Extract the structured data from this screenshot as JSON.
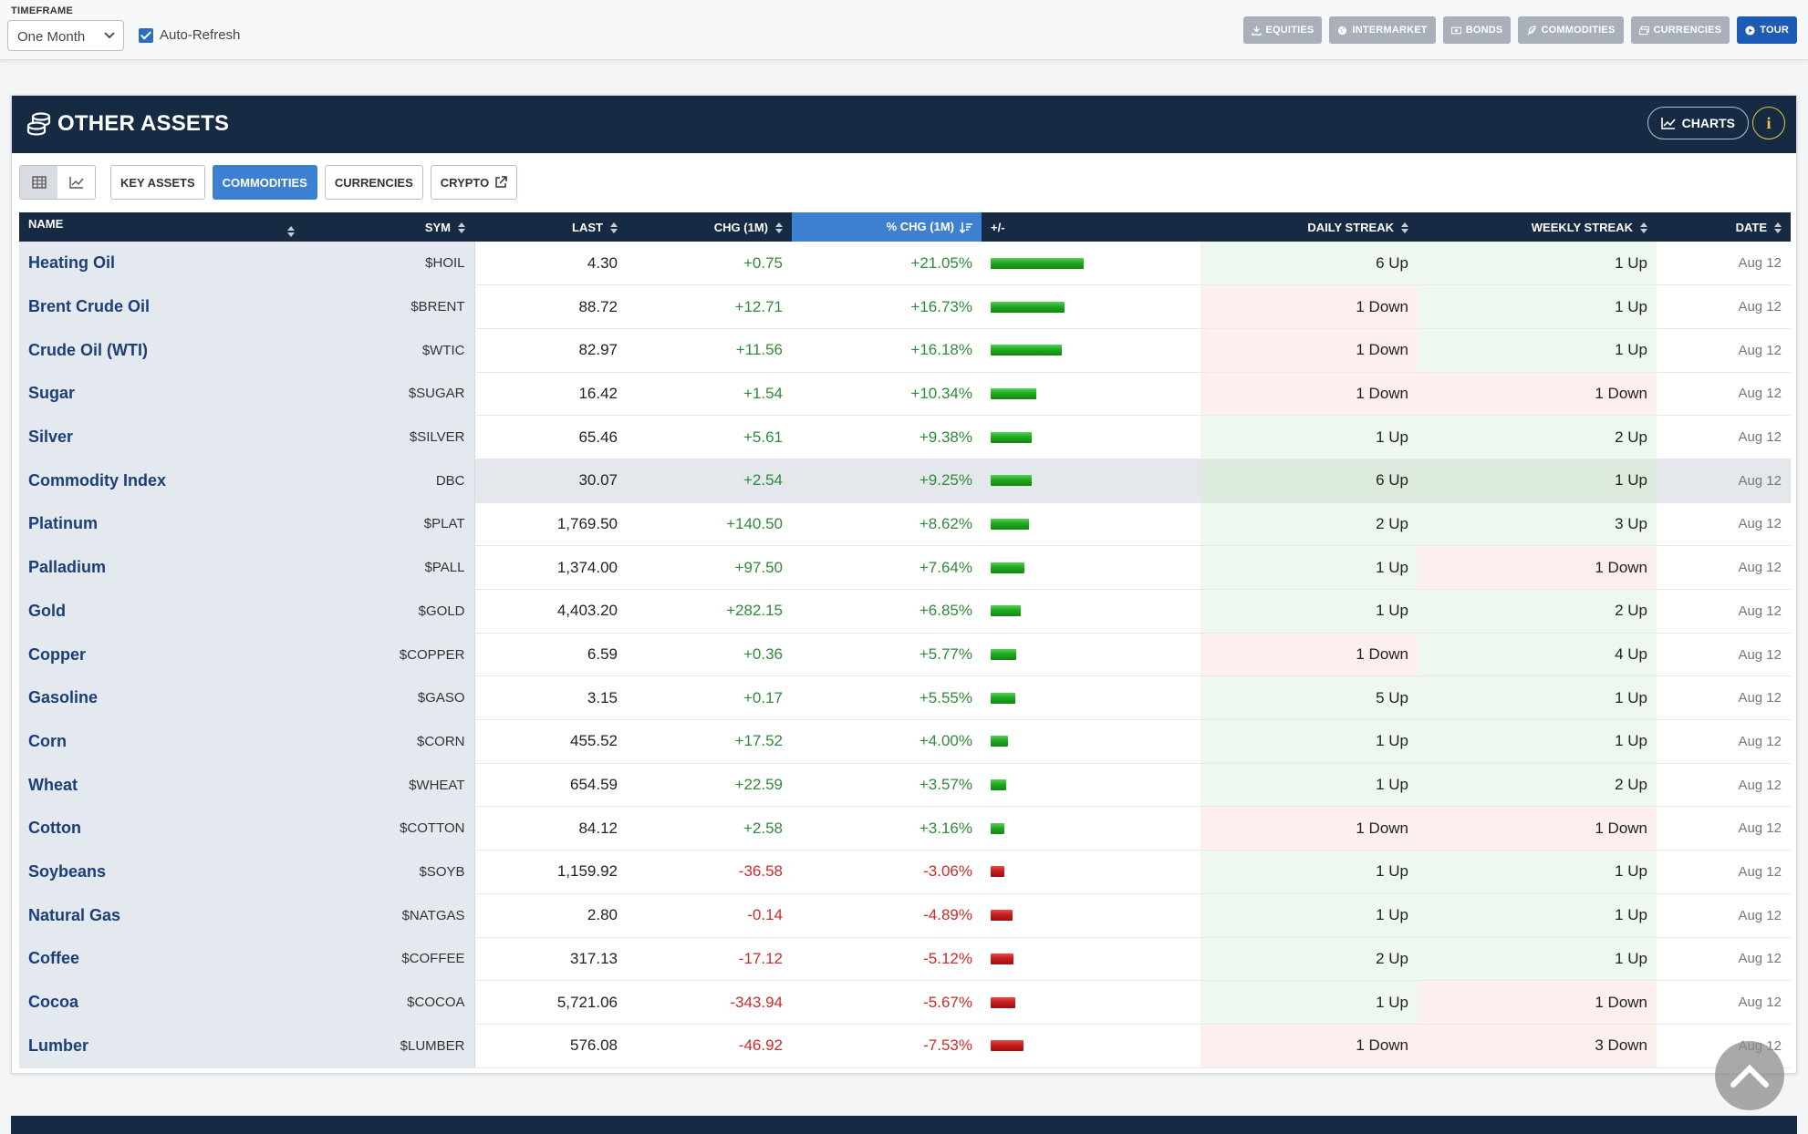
{
  "topbar": {
    "timeframe_label": "TIMEFRAME",
    "timeframe_value": "One Month",
    "auto_refresh_label": "Auto-Refresh",
    "auto_refresh_checked": true,
    "nav": [
      {
        "label": "EQUITIES",
        "icon": "download-icon"
      },
      {
        "label": "INTERMARKET",
        "icon": "globe-icon"
      },
      {
        "label": "BONDS",
        "icon": "money-icon"
      },
      {
        "label": "COMMODITIES",
        "icon": "leaf-icon"
      },
      {
        "label": "CURRENCIES",
        "icon": "money-stack-icon"
      },
      {
        "label": "TOUR",
        "icon": "play-circle-icon"
      }
    ]
  },
  "panel": {
    "title": "OTHER ASSETS",
    "charts_label": "CHARTS",
    "info_label": "i",
    "tabs": [
      "KEY ASSETS",
      "COMMODITIES",
      "CURRENCIES",
      "CRYPTO"
    ],
    "active_tab": "COMMODITIES"
  },
  "table": {
    "headers": [
      "NAME",
      "SYM",
      "LAST",
      "CHG (1M)",
      "% CHG (1M)",
      "+/-",
      "DAILY STREAK",
      "WEEKLY STREAK",
      "DATE"
    ],
    "sorted_column": "% CHG (1M)",
    "rows": [
      {
        "name": "Heating Oil",
        "sym": "$HOIL",
        "last": "4.30",
        "chg": "+0.75",
        "pct": "+21.05%",
        "pct_value": 21.05,
        "daily": "6 Up",
        "weekly": "1 Up",
        "date": "Aug 12"
      },
      {
        "name": "Brent Crude Oil",
        "sym": "$BRENT",
        "last": "88.72",
        "chg": "+12.71",
        "pct": "+16.73%",
        "pct_value": 16.73,
        "daily": "1 Down",
        "weekly": "1 Up",
        "date": "Aug 12"
      },
      {
        "name": "Crude Oil (WTI)",
        "sym": "$WTIC",
        "last": "82.97",
        "chg": "+11.56",
        "pct": "+16.18%",
        "pct_value": 16.18,
        "daily": "1 Down",
        "weekly": "1 Up",
        "date": "Aug 12"
      },
      {
        "name": "Sugar",
        "sym": "$SUGAR",
        "last": "16.42",
        "chg": "+1.54",
        "pct": "+10.34%",
        "pct_value": 10.34,
        "daily": "1 Down",
        "weekly": "1 Down",
        "date": "Aug 12"
      },
      {
        "name": "Silver",
        "sym": "$SILVER",
        "last": "65.46",
        "chg": "+5.61",
        "pct": "+9.38%",
        "pct_value": 9.38,
        "daily": "1 Up",
        "weekly": "2 Up",
        "date": "Aug 12"
      },
      {
        "name": "Commodity Index",
        "sym": "DBC",
        "last": "30.07",
        "chg": "+2.54",
        "pct": "+9.25%",
        "pct_value": 9.25,
        "daily": "6 Up",
        "weekly": "1 Up",
        "date": "Aug 12",
        "highlight": true
      },
      {
        "name": "Platinum",
        "sym": "$PLAT",
        "last": "1,769.50",
        "chg": "+140.50",
        "pct": "+8.62%",
        "pct_value": 8.62,
        "daily": "2 Up",
        "weekly": "3 Up",
        "date": "Aug 12"
      },
      {
        "name": "Palladium",
        "sym": "$PALL",
        "last": "1,374.00",
        "chg": "+97.50",
        "pct": "+7.64%",
        "pct_value": 7.64,
        "daily": "1 Up",
        "weekly": "1 Down",
        "date": "Aug 12"
      },
      {
        "name": "Gold",
        "sym": "$GOLD",
        "last": "4,403.20",
        "chg": "+282.15",
        "pct": "+6.85%",
        "pct_value": 6.85,
        "daily": "1 Up",
        "weekly": "2 Up",
        "date": "Aug 12"
      },
      {
        "name": "Copper",
        "sym": "$COPPER",
        "last": "6.59",
        "chg": "+0.36",
        "pct": "+5.77%",
        "pct_value": 5.77,
        "daily": "1 Down",
        "weekly": "4 Up",
        "date": "Aug 12"
      },
      {
        "name": "Gasoline",
        "sym": "$GASO",
        "last": "3.15",
        "chg": "+0.17",
        "pct": "+5.55%",
        "pct_value": 5.55,
        "daily": "5 Up",
        "weekly": "1 Up",
        "date": "Aug 12"
      },
      {
        "name": "Corn",
        "sym": "$CORN",
        "last": "455.52",
        "chg": "+17.52",
        "pct": "+4.00%",
        "pct_value": 4.0,
        "daily": "1 Up",
        "weekly": "1 Up",
        "date": "Aug 12"
      },
      {
        "name": "Wheat",
        "sym": "$WHEAT",
        "last": "654.59",
        "chg": "+22.59",
        "pct": "+3.57%",
        "pct_value": 3.57,
        "daily": "1 Up",
        "weekly": "2 Up",
        "date": "Aug 12"
      },
      {
        "name": "Cotton",
        "sym": "$COTTON",
        "last": "84.12",
        "chg": "+2.58",
        "pct": "+3.16%",
        "pct_value": 3.16,
        "daily": "1 Down",
        "weekly": "1 Down",
        "date": "Aug 12"
      },
      {
        "name": "Soybeans",
        "sym": "$SOYB",
        "last": "1,159.92",
        "chg": "-36.58",
        "pct": "-3.06%",
        "pct_value": -3.06,
        "daily": "1 Up",
        "weekly": "1 Up",
        "date": "Aug 12"
      },
      {
        "name": "Natural Gas",
        "sym": "$NATGAS",
        "last": "2.80",
        "chg": "-0.14",
        "pct": "-4.89%",
        "pct_value": -4.89,
        "daily": "1 Up",
        "weekly": "1 Up",
        "date": "Aug 12"
      },
      {
        "name": "Coffee",
        "sym": "$COFFEE",
        "last": "317.13",
        "chg": "-17.12",
        "pct": "-5.12%",
        "pct_value": -5.12,
        "daily": "2 Up",
        "weekly": "1 Up",
        "date": "Aug 12"
      },
      {
        "name": "Cocoa",
        "sym": "$COCOA",
        "last": "5,721.06",
        "chg": "-343.94",
        "pct": "-5.67%",
        "pct_value": -5.67,
        "daily": "1 Up",
        "weekly": "1 Down",
        "date": "Aug 12"
      },
      {
        "name": "Lumber",
        "sym": "$LUMBER",
        "last": "576.08",
        "chg": "-46.92",
        "pct": "-7.53%",
        "pct_value": -7.53,
        "daily": "1 Down",
        "weekly": "3 Down",
        "date": "Aug 12"
      }
    ]
  },
  "colors": {
    "header_bg": "#172a44",
    "accent": "#3d7fd0",
    "positive": "#2f8a3a",
    "negative": "#cc2b2b"
  }
}
